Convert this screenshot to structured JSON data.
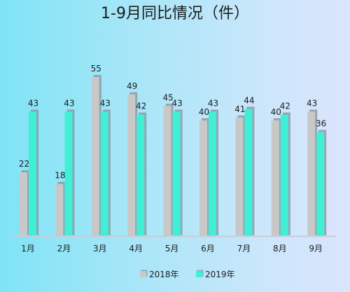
{
  "chart_data": {
    "type": "bar",
    "title": "1-9月同比情况（件）",
    "categories": [
      "1月",
      "2月",
      "3月",
      "4月",
      "5月",
      "6月",
      "7月",
      "8月",
      "9月"
    ],
    "series": [
      {
        "name": "2018年",
        "values": [
          22,
          18,
          55,
          49,
          45,
          40,
          41,
          40,
          43
        ],
        "color": "#c8c8c8",
        "shadow": "#8d9aa6"
      },
      {
        "name": "2019年",
        "values": [
          43,
          43,
          43,
          42,
          43,
          43,
          44,
          42,
          36
        ],
        "color": "#40f0d6",
        "shadow": "#8d9aa6"
      }
    ],
    "ylim": [
      0,
      60
    ],
    "grid": false,
    "legend_position": "bottom",
    "baseline_color": "#c9ccd6",
    "xlabel": "",
    "ylabel": ""
  }
}
